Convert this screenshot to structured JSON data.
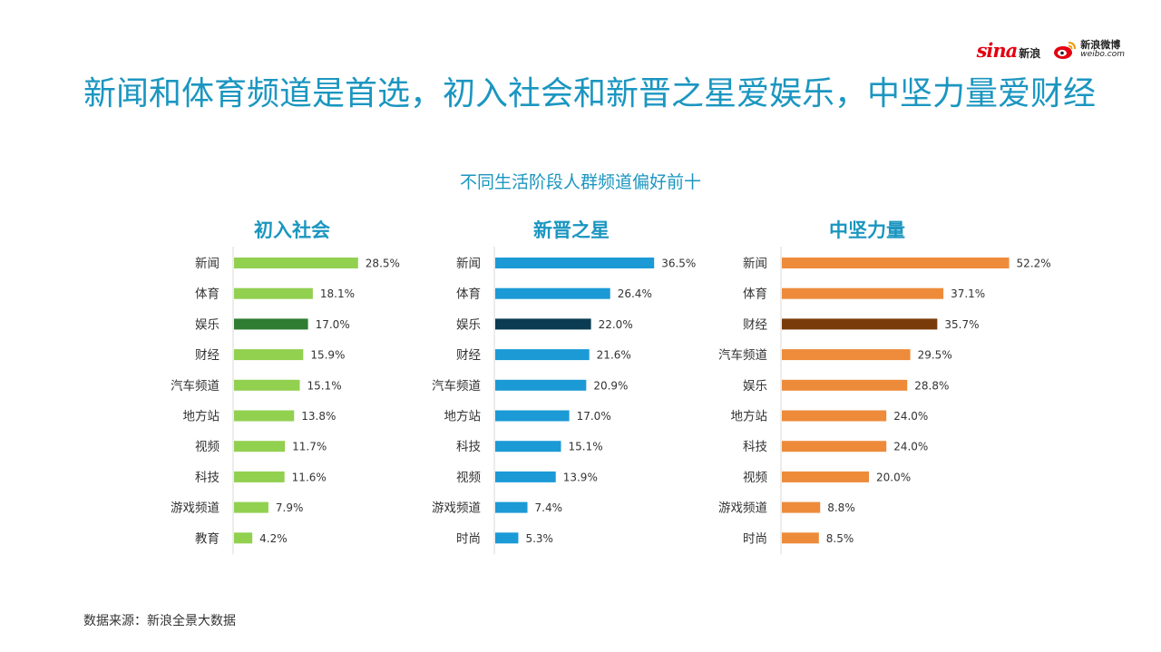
{
  "headline": "新闻和体育频道是首选，初入社会和新晋之星爱娱乐，中坚力量爱财经",
  "logos": {
    "sina_word": "sina",
    "sina_cn": "新浪",
    "weibo_cn": "新浪微博",
    "weibo_en": "weibo.com"
  },
  "source": "数据来源：新浪全景大数据",
  "chart_data": [
    {
      "type": "bar",
      "orientation": "horizontal",
      "title": "初入社会",
      "categories": [
        "新闻",
        "体育",
        "娱乐",
        "财经",
        "汽车频道",
        "地方站",
        "视频",
        "科技",
        "游戏频道",
        "教育"
      ],
      "values": [
        28.5,
        18.1,
        17.0,
        15.9,
        15.1,
        13.8,
        11.7,
        11.6,
        7.9,
        4.2
      ],
      "value_labels": [
        "28.5%",
        "18.1%",
        "17.0%",
        "15.9%",
        "15.1%",
        "13.8%",
        "11.7%",
        "11.6%",
        "7.9%",
        "4.2%"
      ],
      "unit": "%",
      "color": "#92d050",
      "highlight_index": 2,
      "highlight_color": "#2e7d32",
      "xlim": [
        0,
        60
      ]
    },
    {
      "type": "bar",
      "orientation": "horizontal",
      "title": "新晋之星",
      "categories": [
        "新闻",
        "体育",
        "娱乐",
        "财经",
        "汽车频道",
        "地方站",
        "科技",
        "视频",
        "游戏频道",
        "时尚"
      ],
      "values": [
        36.5,
        26.4,
        22.0,
        21.6,
        20.9,
        17.0,
        15.1,
        13.9,
        7.4,
        5.3
      ],
      "value_labels": [
        "36.5%",
        "26.4%",
        "22.0%",
        "21.6%",
        "20.9%",
        "17.0%",
        "15.1%",
        "13.9%",
        "7.4%",
        "5.3%"
      ],
      "unit": "%",
      "color": "#1b9ad6",
      "highlight_index": 2,
      "highlight_color": "#0b3b52",
      "xlim": [
        0,
        60
      ]
    },
    {
      "type": "bar",
      "orientation": "horizontal",
      "title": "中坚力量",
      "categories": [
        "新闻",
        "体育",
        "财经",
        "汽车频道",
        "娱乐",
        "地方站",
        "科技",
        "视频",
        "游戏频道",
        "时尚"
      ],
      "values": [
        52.2,
        37.1,
        35.7,
        29.5,
        28.8,
        24.0,
        24.0,
        20.0,
        8.8,
        8.5
      ],
      "value_labels": [
        "52.2%",
        "37.1%",
        "35.7%",
        "29.5%",
        "28.8%",
        "24.0%",
        "24.0%",
        "20.0%",
        "8.8%",
        "8.5%"
      ],
      "unit": "%",
      "color": "#ed8b3b",
      "highlight_index": 2,
      "highlight_color": "#7a3b0a",
      "xlim": [
        0,
        60
      ]
    }
  ],
  "subtitle": "不同生活阶段人群频道偏好前十"
}
